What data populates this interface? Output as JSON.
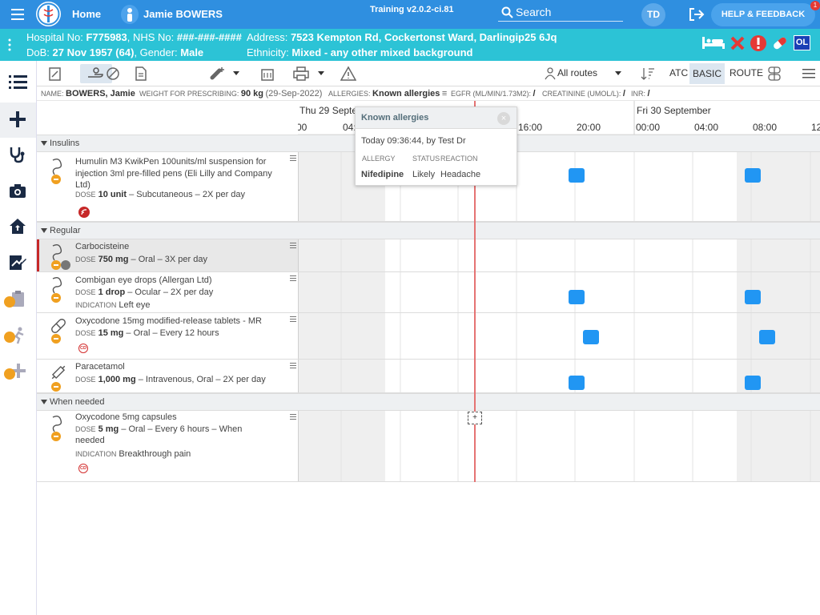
{
  "topbar": {
    "home": "Home",
    "patient_name": "Jamie BOWERS",
    "training": "Training v2.0.2-ci.81",
    "search": "Search",
    "avatar": "TD",
    "help": "HELP & FEEDBACK",
    "help_badge": "1"
  },
  "banner": {
    "hospital_label": "Hospital No:",
    "hospital_no": "F775983",
    "nhs_label": ", NHS No:",
    "nhs_no": "###-###-####",
    "dob_label": "DoB:",
    "dob": "27 Nov 1957 (64)",
    "gender_label": ", Gender:",
    "gender": "Male",
    "address_label": "Address:",
    "address": "7523 Kempton Rd, Cockertonst Ward, Darlingip25 6Jq",
    "ethnicity_label": "Ethnicity:",
    "ethnicity": "Mixed - any other mixed background",
    "ol": "OL"
  },
  "toolbar": {
    "routes": "All routes",
    "atc": "ATC",
    "basic": "BASIC",
    "route": "ROUTE"
  },
  "info": {
    "name_label": "NAME:",
    "name": "BOWERS, Jamie",
    "weight_label": "WEIGHT FOR PRESCRIBING:",
    "weight": "90 kg",
    "weight_date": "(29-Sep-2022)",
    "allergies_label": "ALLERGIES:",
    "allergies": "Known allergies",
    "egfr_label": "EGFR (ML/MIN/1.73M2):",
    "egfr": "/",
    "creatinine_label": "CREATININE (UMOL/L):",
    "creatinine": "/",
    "inr_label": "INR:",
    "inr": "/"
  },
  "timeline": {
    "day1": "Thu 29 Septem",
    "day2": "Fri 30 September",
    "hours": [
      "00",
      "04:",
      "16:00",
      "20:00",
      "00:00",
      "04:00",
      "08:00",
      "12"
    ]
  },
  "sections": {
    "insulins": "Insulins",
    "regular": "Regular",
    "when_needed": "When needed"
  },
  "meds": [
    {
      "name": "Humulin M3 KwikPen 100units/ml suspension for injection 3ml pre-filled pens (Eli Lilly and Company Ltd)",
      "dose_label": "DOSE",
      "dose": "10 unit",
      "dose_rest": " – Subcutaneous – 2X per day"
    },
    {
      "name": "Carbocisteine",
      "dose_label": "DOSE",
      "dose": "750 mg",
      "dose_rest": " – Oral – 3X per day"
    },
    {
      "name": "Combigan eye drops (Allergan Ltd)",
      "dose_label": "DOSE",
      "dose": "1 drop",
      "dose_rest": " – Ocular – 2X per day",
      "ind_label": "INDICATION",
      "indication": "Left eye"
    },
    {
      "name": "Oxycodone 15mg modified-release tablets - MR",
      "dose_label": "DOSE",
      "dose": "15 mg",
      "dose_rest": " – Oral – Every 12 hours",
      "badge": "CD"
    },
    {
      "name": "Paracetamol",
      "dose_label": "DOSE",
      "dose": "1,000 mg",
      "dose_rest": " – Intravenous, Oral – 2X per day"
    },
    {
      "name": "Oxycodone 5mg capsules",
      "dose_label": "DOSE",
      "dose": "5 mg",
      "dose_rest": " – Oral – Every 6 hours – When needed",
      "ind_label": "INDICATION",
      "indication": "Breakthrough pain",
      "badge": "CD"
    }
  ],
  "popup": {
    "title": "Known allergies",
    "time": "Today 09:36:44, by Test Dr",
    "h_allergy": "ALLERGY",
    "h_status": "STATUS",
    "h_reaction": "REACTION",
    "allergy": "Nifedipine",
    "status": "Likely",
    "reaction": "Headache"
  },
  "add_symbol": "+",
  "colors": {
    "topbar": "#2f8fe0",
    "banner": "#2cc3d6",
    "dose": "#2196f3",
    "now": "#e57373"
  }
}
